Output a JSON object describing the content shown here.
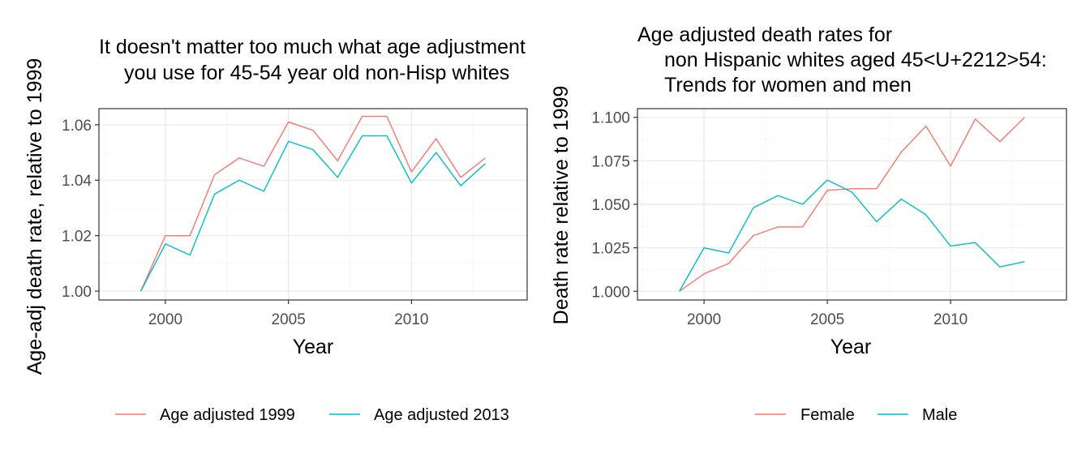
{
  "colors": {
    "series_1": "#F8766D",
    "series_2": "#00BFC4"
  },
  "chart_data": [
    {
      "type": "line",
      "title_lines": [
        "It doesn't matter too much what age adjustment",
        "you use for 45-54 year old non-Hisp whites"
      ],
      "xlabel": "Year",
      "ylabel": "Age-adj death rate, relative to 1999",
      "x": [
        1999,
        2000,
        2001,
        2002,
        2003,
        2004,
        2005,
        2006,
        2007,
        2008,
        2009,
        2010,
        2011,
        2012,
        2013
      ],
      "xlim": [
        1997.3,
        2014.7
      ],
      "ylim": [
        0.9968,
        1.0658
      ],
      "xticks": [
        2000,
        2005,
        2010
      ],
      "xtick_labels": [
        "2000",
        "2005",
        "2010"
      ],
      "yticks": [
        1.0,
        1.02,
        1.04,
        1.06
      ],
      "ytick_labels": [
        "1.00",
        "1.02",
        "1.04",
        "1.06"
      ],
      "grid": true,
      "legend_position": "bottom",
      "series": [
        {
          "name": "Age adjusted 1999",
          "color": "#F8766D",
          "values": [
            1.0,
            1.02,
            1.02,
            1.042,
            1.048,
            1.045,
            1.061,
            1.058,
            1.047,
            1.063,
            1.063,
            1.043,
            1.055,
            1.041,
            1.048
          ]
        },
        {
          "name": "Age adjusted 2013",
          "color": "#00BFC4",
          "values": [
            1.0,
            1.017,
            1.013,
            1.035,
            1.04,
            1.036,
            1.054,
            1.051,
            1.041,
            1.056,
            1.056,
            1.039,
            1.05,
            1.038,
            1.046
          ]
        }
      ]
    },
    {
      "type": "line",
      "title_lines": [
        "Age adjusted death rates for",
        "non Hispanic whites aged 45<U+2212>54:",
        "Trends for women and men"
      ],
      "xlabel": "Year",
      "ylabel": "Death rate relative to 1999",
      "x": [
        1999,
        2000,
        2001,
        2002,
        2003,
        2004,
        2005,
        2006,
        2007,
        2008,
        2009,
        2010,
        2011,
        2012,
        2013
      ],
      "xlim": [
        1997.3,
        2014.7
      ],
      "ylim": [
        0.995,
        1.105
      ],
      "xticks": [
        2000,
        2005,
        2010
      ],
      "xtick_labels": [
        "2000",
        "2005",
        "2010"
      ],
      "yticks": [
        1.0,
        1.025,
        1.05,
        1.075,
        1.1
      ],
      "ytick_labels": [
        "1.000",
        "1.025",
        "1.050",
        "1.075",
        "1.100"
      ],
      "grid": true,
      "legend_position": "bottom",
      "series": [
        {
          "name": "Female",
          "color": "#F8766D",
          "values": [
            1.0,
            1.01,
            1.016,
            1.032,
            1.037,
            1.037,
            1.058,
            1.059,
            1.059,
            1.08,
            1.095,
            1.072,
            1.099,
            1.086,
            1.1
          ]
        },
        {
          "name": "Male",
          "color": "#00BFC4",
          "values": [
            1.0,
            1.025,
            1.022,
            1.048,
            1.055,
            1.05,
            1.064,
            1.057,
            1.04,
            1.053,
            1.044,
            1.026,
            1.028,
            1.014,
            1.017
          ]
        }
      ]
    }
  ]
}
